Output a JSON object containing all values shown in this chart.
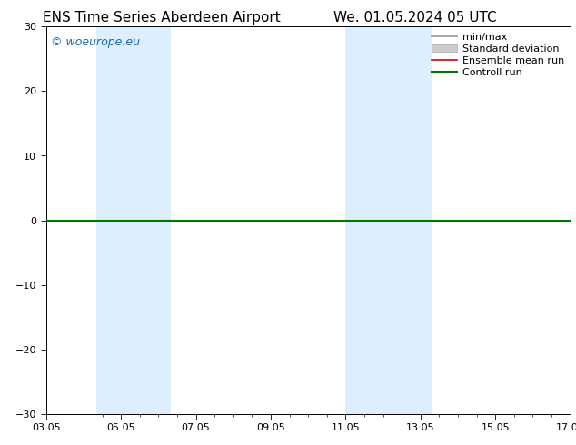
{
  "title_left": "ENS Time Series Aberdeen Airport",
  "title_right": "We. 01.05.2024 05 UTC",
  "ylim": [
    -30,
    30
  ],
  "yticks": [
    -30,
    -20,
    -10,
    0,
    10,
    20,
    30
  ],
  "xtick_labels": [
    "03.05",
    "05.05",
    "07.05",
    "09.05",
    "11.05",
    "13.05",
    "15.05",
    "17.05"
  ],
  "xtick_positions": [
    0,
    2,
    4,
    6,
    8,
    10,
    12,
    14
  ],
  "x_total": 14,
  "shaded_bands": [
    {
      "x_start": 1.33,
      "x_end": 3.33,
      "color": "#ddeeff"
    },
    {
      "x_start": 8.0,
      "x_end": 10.33,
      "color": "#ddeeff"
    }
  ],
  "watermark": "© woeurope.eu",
  "watermark_color": "#1a6aaa",
  "background_color": "#ffffff",
  "legend_items": [
    {
      "label": "min/max",
      "type": "line",
      "color": "#999999",
      "lw": 1.2
    },
    {
      "label": "Standard deviation",
      "type": "patch",
      "color": "#cccccc"
    },
    {
      "label": "Ensemble mean run",
      "type": "line",
      "color": "#dd0000",
      "lw": 1.2
    },
    {
      "label": "Controll run",
      "type": "line",
      "color": "#007700",
      "lw": 1.5
    }
  ],
  "zero_line_color": "#007700",
  "zero_line_lw": 1.5,
  "fontsize_title": 11,
  "fontsize_ticks": 8,
  "fontsize_legend": 8,
  "fontsize_watermark": 9,
  "fig_width": 6.34,
  "fig_height": 4.9,
  "dpi": 100
}
